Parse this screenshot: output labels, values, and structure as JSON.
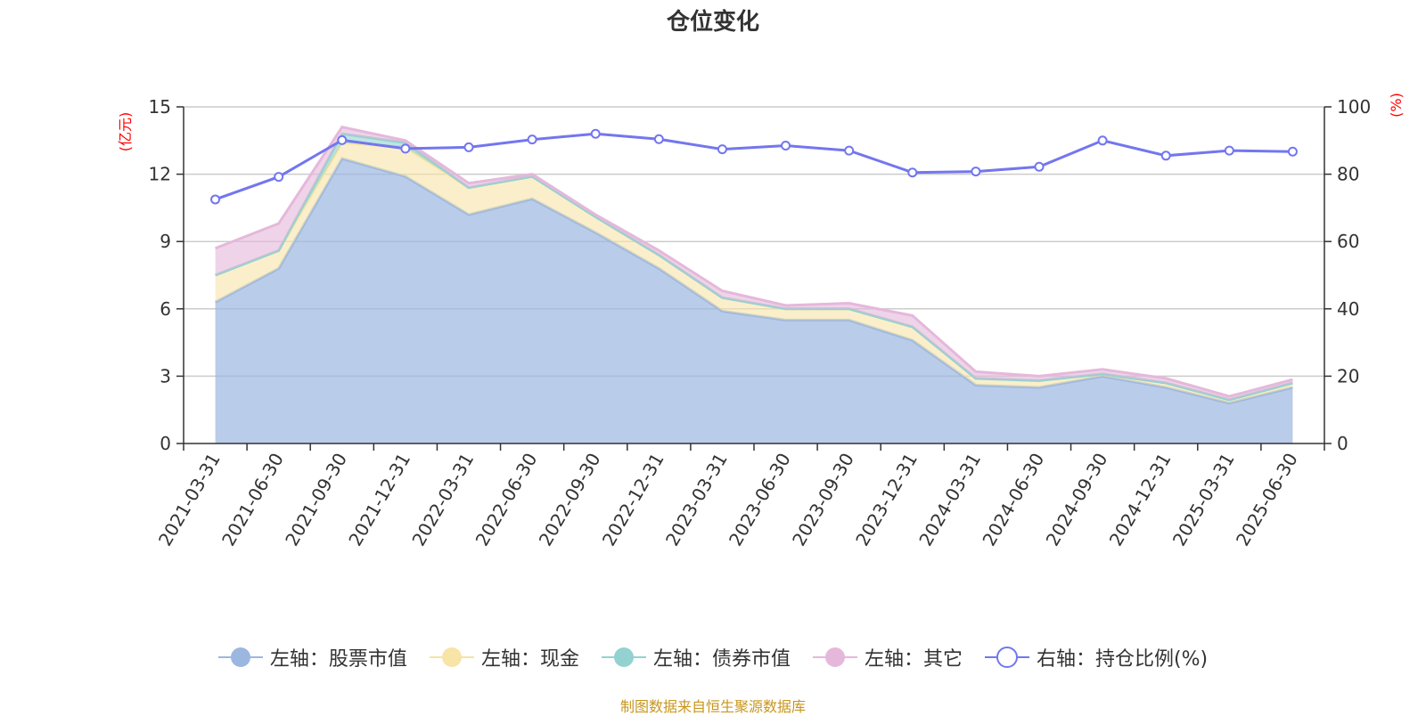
{
  "chart_data": {
    "type": "area",
    "title": "仓位变化",
    "left_axis_unit": "(亿元)",
    "right_axis_unit": "(%)",
    "x": [
      "2021-03-31",
      "2021-06-30",
      "2021-09-30",
      "2021-12-31",
      "2022-03-31",
      "2022-06-30",
      "2022-09-30",
      "2022-12-31",
      "2023-03-31",
      "2023-06-30",
      "2023-09-30",
      "2023-12-31",
      "2024-03-31",
      "2024-06-30",
      "2024-09-30",
      "2024-12-31",
      "2025-03-31",
      "2025-06-30"
    ],
    "left_ylim": [
      0,
      15
    ],
    "left_yticks": [
      "0",
      "3",
      "6",
      "9",
      "12",
      "15"
    ],
    "right_ylim": [
      0,
      100
    ],
    "right_yticks": [
      "0",
      "20",
      "40",
      "60",
      "80",
      "100"
    ],
    "grid": true,
    "legend_position": "bottom",
    "series": [
      {
        "name": "左轴：股票市值",
        "axis": "left",
        "kind": "stacked-area",
        "color": "#9bb7e0",
        "values": [
          6.3,
          7.8,
          12.7,
          11.9,
          10.2,
          10.9,
          9.4,
          7.8,
          5.9,
          5.5,
          5.5,
          4.6,
          2.6,
          2.5,
          3.0,
          2.5,
          1.8,
          2.5
        ]
      },
      {
        "name": "左轴：现金",
        "axis": "left",
        "kind": "stacked-area",
        "color": "#f7e4a6",
        "values": [
          1.2,
          0.8,
          0.7,
          1.3,
          1.2,
          1.0,
          0.7,
          0.6,
          0.6,
          0.5,
          0.5,
          0.6,
          0.3,
          0.3,
          0.1,
          0.2,
          0.15,
          0.2
        ]
      },
      {
        "name": "左轴：债券市值",
        "axis": "left",
        "kind": "stacked-area",
        "color": "#93d2d0",
        "values": [
          0,
          0,
          0.4,
          0.2,
          0,
          0,
          0,
          0,
          0,
          0,
          0,
          0,
          0,
          0,
          0,
          0,
          0,
          0
        ]
      },
      {
        "name": "左轴：其它",
        "axis": "left",
        "kind": "stacked-area",
        "color": "#e5b8db",
        "values": [
          1.2,
          1.2,
          0.3,
          0.1,
          0.2,
          0.1,
          0.1,
          0.2,
          0.3,
          0.15,
          0.25,
          0.5,
          0.3,
          0.2,
          0.2,
          0.2,
          0.15,
          0.15
        ]
      },
      {
        "name": "右轴：持仓比例(%)",
        "axis": "right",
        "kind": "line",
        "color": "#7376ef",
        "values": [
          72.5,
          79.2,
          90.1,
          87.6,
          88.0,
          90.3,
          92.0,
          90.4,
          87.4,
          88.5,
          87.0,
          80.5,
          80.8,
          82.2,
          90.0,
          85.5,
          87.0,
          86.7
        ]
      }
    ]
  },
  "source_note": "制图数据来自恒生聚源数据库"
}
